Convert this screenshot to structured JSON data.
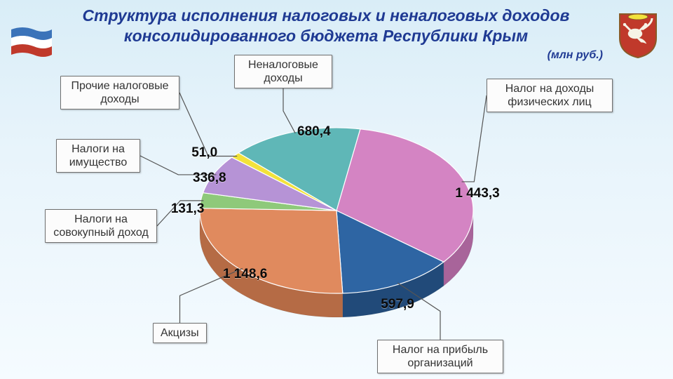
{
  "title_line1": "Структура исполнения  налоговых и неналоговых доходов",
  "title_line2": "консолидированного бюджета Республики Крым",
  "unit_label": "(млн руб.)",
  "chart": {
    "type": "pie-3d",
    "background_color": "#e6f3fa",
    "slices": [
      {
        "label": "Налог на доходы физических лиц",
        "value": 1443.3,
        "value_text": "1 443,3",
        "color_top": "#d484c3",
        "color_side": "#a8649a"
      },
      {
        "label": "Налог на прибыль организаций",
        "value": 597.9,
        "value_text": "597,9",
        "color_top": "#2e65a3",
        "color_side": "#214a79"
      },
      {
        "label": "Акцизы",
        "value": 1148.6,
        "value_text": "1 148,6",
        "color_top": "#e08a5e",
        "color_side": "#b56b45"
      },
      {
        "label": "Налоги на совокупный доход",
        "value": 131.3,
        "value_text": "131,3",
        "color_top": "#8ec97a",
        "color_side": "#6fa35f"
      },
      {
        "label": "Налоги на имущество",
        "value": 336.8,
        "value_text": "336,8",
        "color_top": "#b693d6",
        "color_side": "#9375ad"
      },
      {
        "label": "Прочие налоговые доходы",
        "value": 51.0,
        "value_text": "51,0",
        "color_top": "#f2e23b",
        "color_side": "#c9bb2f"
      },
      {
        "label": "Неналоговые доходы",
        "value": 680.4,
        "value_text": "680,4",
        "color_top": "#5fb7b7",
        "color_side": "#4a9292"
      }
    ],
    "value_font_size": 19,
    "label_font_size": 16,
    "title_font_size": 23,
    "title_color": "#1f3a93"
  },
  "flag": {
    "top": "#3b73b9",
    "mid": "#ffffff",
    "bot": "#c0392b"
  },
  "coat": {
    "shield": "#c0392b",
    "figure": "#f6f3e6",
    "border": "#8a5a27"
  }
}
